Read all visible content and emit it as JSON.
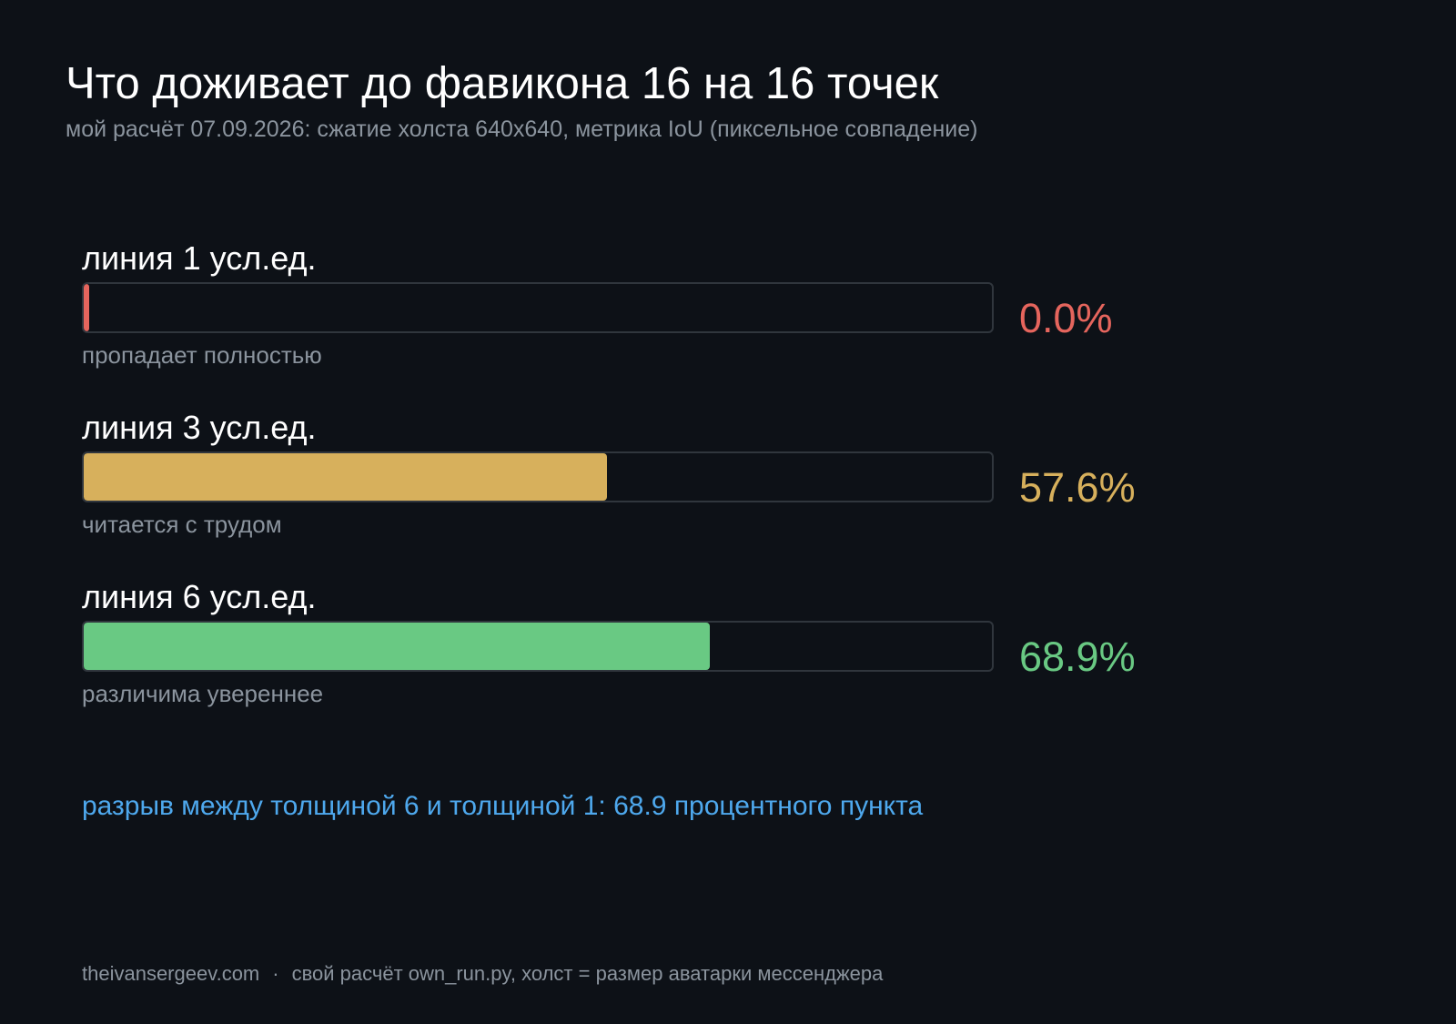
{
  "title": "Что доживает до фавикона 16 на 16 точек",
  "subtitle": "мой расчёт 07.09.2026: сжатие холста 640x640, метрика IoU (пиксельное совпадение)",
  "chart_data": {
    "type": "bar",
    "orientation": "horizontal",
    "title": "Что доживает до фавикона 16 на 16 точек",
    "subtitle": "мой расчёт 07.09.2026: сжатие холста 640x640, метрика IoU (пиксельное совпадение)",
    "categories": [
      "линия 1 усл.ед.",
      "линия 3 усл.ед.",
      "линия 6 усл.ед."
    ],
    "values": [
      0.0,
      57.6,
      68.9
    ],
    "value_labels": [
      "0.0%",
      "57.6%",
      "68.9%"
    ],
    "notes": [
      "пропадает полностью",
      "читается с трудом",
      "различима увереннее"
    ],
    "colors": [
      "#e5655d",
      "#d7b05c",
      "#69c983"
    ],
    "xlim": [
      0,
      100
    ],
    "unit": "%",
    "grid": false,
    "legend": "none",
    "annotation": "разрыв между толщиной 6 и толщиной 1: 68.9 процентного пункта"
  },
  "footer": {
    "site": "theivansergeev.com",
    "separator": "·",
    "text": "свой расчёт own_run.py, холст = размер аватарки мессенджера"
  },
  "colors": {
    "background": "#0d1117",
    "track_border": "#30363d",
    "muted_text": "#8b949e",
    "accent": "#4ea8ed"
  }
}
